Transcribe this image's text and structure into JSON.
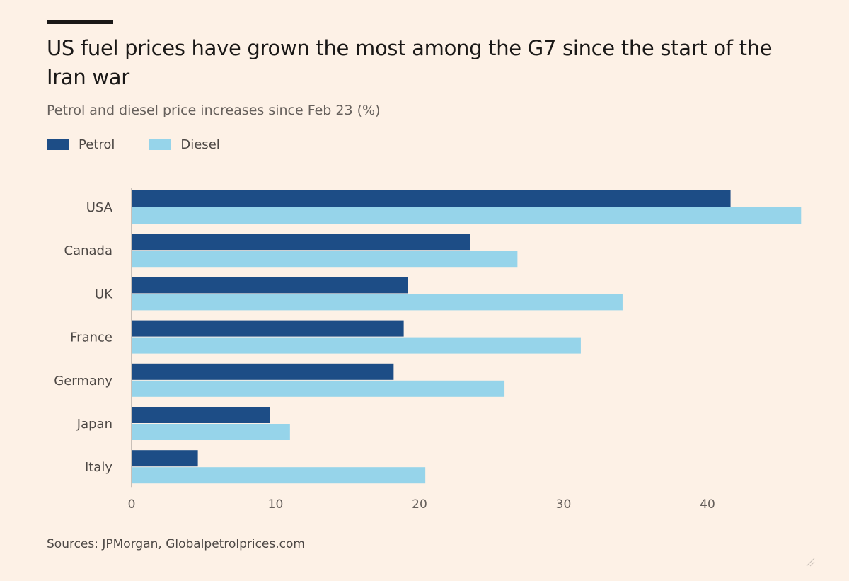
{
  "chart_data": {
    "type": "bar",
    "orientation": "horizontal",
    "title": "US fuel prices have grown the most among the G7 since the start of the Iran war",
    "subtitle": "Petrol and diesel price increases since Feb 23 (%)",
    "categories": [
      "USA",
      "Canada",
      "UK",
      "France",
      "Germany",
      "Japan",
      "Italy"
    ],
    "series": [
      {
        "name": "Petrol",
        "color": "#1d4d86",
        "values": [
          41.6,
          23.5,
          19.2,
          18.9,
          18.2,
          9.6,
          4.6
        ]
      },
      {
        "name": "Diesel",
        "color": "#96d4ea",
        "values": [
          46.5,
          26.8,
          34.1,
          31.2,
          25.9,
          11.0,
          20.4
        ]
      }
    ],
    "xlim": [
      0,
      47
    ],
    "xticks": [
      0,
      10,
      20,
      30,
      40
    ],
    "xtick_labels": [
      "0",
      "10",
      "20",
      "30",
      "40"
    ],
    "legend_position": "top-left",
    "grid": false,
    "source": "Sources: JPMorgan, Globalpetrolprices.com"
  }
}
